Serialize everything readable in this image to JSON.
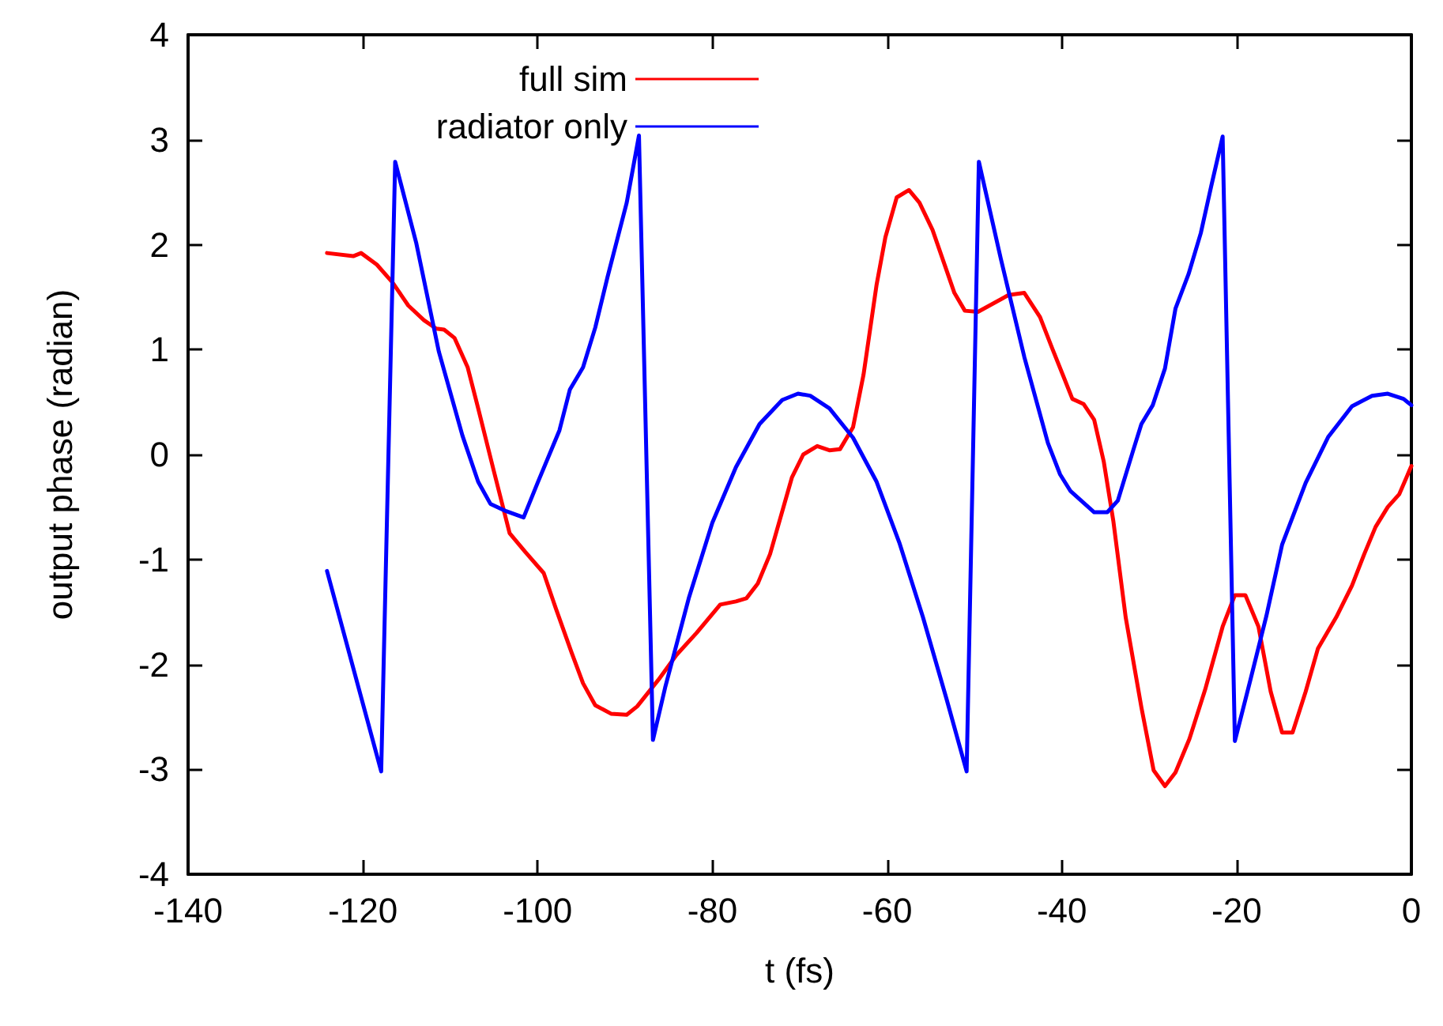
{
  "chart_data": {
    "type": "line",
    "xlabel": "t (fs)",
    "ylabel": "output phase (radian)",
    "xlim": [
      -140,
      0
    ],
    "xticks": [
      -140,
      -120,
      -100,
      -80,
      -60,
      -40,
      -20,
      0
    ],
    "ylim": [
      -4,
      4
    ],
    "yticks": [
      -4,
      -3,
      -2,
      -1,
      0,
      1,
      2,
      3,
      4
    ],
    "grid": false,
    "legend": "top",
    "marker": "none",
    "line_style": "solid",
    "series": [
      {
        "name": "full sim",
        "color": "#ff0000",
        "x": [
          -124.1,
          -121.1,
          -120.2,
          -118.4,
          -116.6,
          -114.8,
          -113,
          -111.6,
          -110.7,
          -109.5,
          -108,
          -106.8,
          -105,
          -103.2,
          -101.4,
          -99.3,
          -97.9,
          -96.1,
          -94.8,
          -93.4,
          -91.6,
          -89.8,
          -88.6,
          -86.2,
          -84.1,
          -81.8,
          -79.1,
          -77.3,
          -76.1,
          -74.8,
          -73.4,
          -70.9,
          -69.6,
          -68,
          -66.6,
          -65.4,
          -63.9,
          -62.7,
          -61.2,
          -60.2,
          -58.9,
          -57.5,
          -56.3,
          -54.8,
          -52.3,
          -51.1,
          -49.6,
          -46.1,
          -44.3,
          -42.5,
          -41.1,
          -39.8,
          -38.8,
          -37.5,
          -36.3,
          -35.2,
          -34.1,
          -32.7,
          -30.9,
          -29.5,
          -28.2,
          -27,
          -25.4,
          -23.6,
          -21.6,
          -20.2,
          -19,
          -17.5,
          -16.1,
          -14.8,
          -13.6,
          -12.1,
          -10.7,
          -8.6,
          -6.8,
          -5.4,
          -4.1,
          -2.7,
          -1.4,
          0
        ],
        "values": [
          1.92,
          1.89,
          1.92,
          1.81,
          1.64,
          1.42,
          1.28,
          1.2,
          1.19,
          1.11,
          0.83,
          0.44,
          -0.16,
          -0.75,
          -0.93,
          -1.13,
          -1.47,
          -1.89,
          -2.18,
          -2.39,
          -2.47,
          -2.48,
          -2.4,
          -2.15,
          -1.91,
          -1.7,
          -1.43,
          -1.4,
          -1.37,
          -1.23,
          -0.95,
          -0.22,
          0,
          0.08,
          0.04,
          0.05,
          0.26,
          0.76,
          1.62,
          2.07,
          2.45,
          2.52,
          2.4,
          2.14,
          1.54,
          1.37,
          1.36,
          1.52,
          1.54,
          1.31,
          1.01,
          0.74,
          0.53,
          0.48,
          0.33,
          -0.07,
          -0.64,
          -1.55,
          -2.41,
          -3.01,
          -3.16,
          -3.03,
          -2.71,
          -2.24,
          -1.64,
          -1.34,
          -1.34,
          -1.64,
          -2.26,
          -2.65,
          -2.65,
          -2.26,
          -1.85,
          -1.55,
          -1.25,
          -0.95,
          -0.69,
          -0.5,
          -0.38,
          -0.11
        ]
      },
      {
        "name": "radiator only",
        "color": "#0000ff",
        "x": [
          -124.1,
          -117.9,
          -116.3,
          -113.9,
          -111.3,
          -108.6,
          -106.8,
          -105.4,
          -103.6,
          -101.6,
          -100,
          -97.5,
          -96.3,
          -94.8,
          -93.4,
          -92,
          -89.8,
          -88.4,
          -86.8,
          -85.4,
          -82.7,
          -80,
          -77.3,
          -74.6,
          -72,
          -70.2,
          -68.8,
          -66.6,
          -63.9,
          -61.2,
          -58.6,
          -55.9,
          -53.2,
          -50.9,
          -49.5,
          -47,
          -44.3,
          -41.6,
          -40.2,
          -39,
          -36.3,
          -34.8,
          -33.6,
          -31.8,
          -30.9,
          -29.6,
          -28.2,
          -27,
          -25.5,
          -24.1,
          -22.9,
          -21.6,
          -20.2,
          -18.4,
          -16.6,
          -14.8,
          -12.1,
          -9.5,
          -6.8,
          -4.5,
          -2.7,
          -0.9,
          0
        ],
        "values": [
          -1.11,
          -3.02,
          2.79,
          2.02,
          0.98,
          0.18,
          -0.26,
          -0.47,
          -0.54,
          -0.6,
          -0.27,
          0.23,
          0.62,
          0.83,
          1.21,
          1.69,
          2.4,
          3.04,
          -2.72,
          -2.22,
          -1.37,
          -0.65,
          -0.12,
          0.29,
          0.52,
          0.58,
          0.56,
          0.44,
          0.16,
          -0.26,
          -0.84,
          -1.55,
          -2.33,
          -3.02,
          2.79,
          1.87,
          0.93,
          0.11,
          -0.19,
          -0.35,
          -0.55,
          -0.55,
          -0.44,
          0.05,
          0.29,
          0.47,
          0.82,
          1.39,
          1.72,
          2.11,
          2.56,
          3.03,
          -2.73,
          -2.14,
          -1.54,
          -0.86,
          -0.27,
          0.17,
          0.46,
          0.56,
          0.58,
          0.53,
          0.47
        ]
      }
    ]
  }
}
